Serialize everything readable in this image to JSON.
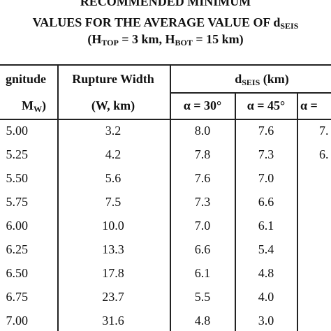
{
  "title": {
    "lines": [
      [
        {
          "text": "RECOMMENDED MINIMUM"
        }
      ],
      [
        {
          "text": "VALUES FOR THE AVERAGE VALUE OF d"
        },
        {
          "sub": "SEIS"
        }
      ],
      [
        {
          "text": "(H"
        },
        {
          "sub": "TOP"
        },
        {
          "text": " = 3 km, H"
        },
        {
          "sub": "BOT"
        },
        {
          "text": " = 15 km)"
        }
      ]
    ]
  },
  "table": {
    "header": {
      "magnitude": [
        [
          {
            "text": "gnitude"
          }
        ],
        [
          {
            "text": "M"
          },
          {
            "sub": "W"
          },
          {
            "text": ")"
          }
        ]
      ],
      "width": [
        [
          {
            "text": "Rupture Width"
          }
        ],
        [
          {
            "text": "(W, km)"
          }
        ]
      ],
      "dseis": [
        {
          "text": "d"
        },
        {
          "sub": "SEIS"
        },
        {
          "text": " (km)"
        }
      ],
      "alphas": [
        "α = 30°",
        "α = 45°",
        "α ="
      ]
    },
    "rows": [
      [
        "5.00",
        "3.2",
        "8.0",
        "7.6",
        "7."
      ],
      [
        "5.25",
        "4.2",
        "7.8",
        "7.3",
        "6."
      ],
      [
        "5.50",
        "5.6",
        "7.6",
        "7.0"
      ],
      [
        "5.75",
        "7.5",
        "7.3",
        "6.6"
      ],
      [
        "6.00",
        "10.0",
        "7.0",
        "6.1"
      ],
      [
        "6.25",
        "13.3",
        "6.6",
        "5.4"
      ],
      [
        "6.50",
        "17.8",
        "6.1",
        "4.8"
      ],
      [
        "6.75",
        "23.7",
        "5.5",
        "4.0"
      ],
      [
        "7.00",
        "31.6",
        "4.8",
        "3.0"
      ]
    ]
  }
}
